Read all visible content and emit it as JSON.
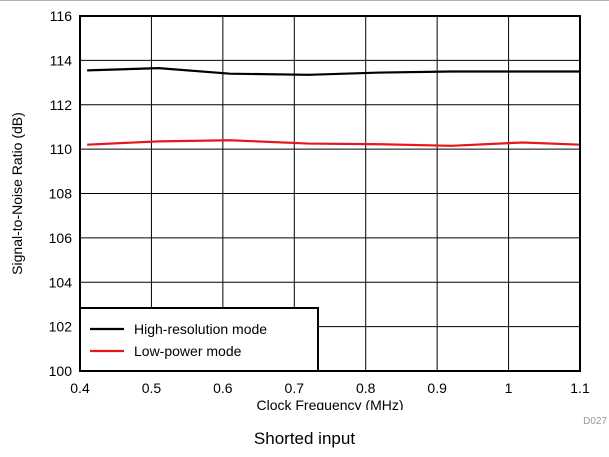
{
  "chart_data": {
    "type": "line",
    "xlabel": "Clock Frequency (MHz)",
    "ylabel": "Signal-to-Noise Ratio (dB)",
    "xlim": [
      0.4,
      1.1
    ],
    "ylim": [
      100,
      116
    ],
    "x_ticks": [
      "0.4",
      "0.5",
      "0.6",
      "0.7",
      "0.8",
      "0.9",
      "1",
      "1.1"
    ],
    "y_ticks": [
      "100",
      "102",
      "104",
      "106",
      "108",
      "110",
      "112",
      "114",
      "116"
    ],
    "grid": true,
    "legend_position": "bottom-left",
    "series": [
      {
        "name": "High-resolution mode",
        "color": "#000000",
        "x": [
          0.41,
          0.51,
          0.61,
          0.72,
          0.82,
          0.92,
          1.02,
          1.1
        ],
        "y": [
          113.55,
          113.65,
          113.4,
          113.35,
          113.45,
          113.5,
          113.5,
          113.5
        ]
      },
      {
        "name": "Low-power mode",
        "color": "#e8161c",
        "x": [
          0.41,
          0.51,
          0.61,
          0.72,
          0.82,
          0.92,
          1.02,
          1.1
        ],
        "y": [
          110.2,
          110.35,
          110.4,
          110.25,
          110.22,
          110.15,
          110.3,
          110.2
        ]
      }
    ]
  },
  "figure_id": "D027",
  "caption": "Shorted input"
}
